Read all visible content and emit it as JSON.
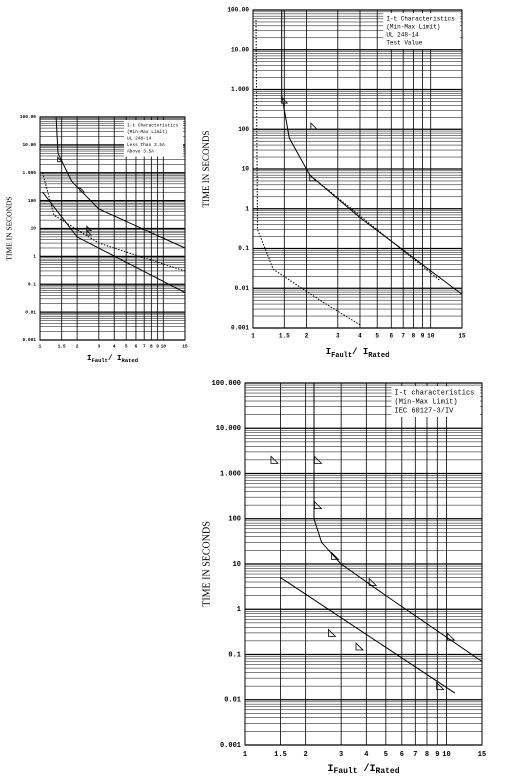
{
  "chart_data": [
    {
      "type": "line",
      "log_x": true,
      "log_y": true,
      "grid": true,
      "minor_grid": true,
      "legend": "upper right",
      "y_label": "TIME IN SECONDS",
      "x_label": [
        "I",
        "Fault",
        "/ I",
        "Rated"
      ],
      "legend_text": [
        "I-t Characteristics",
        "(Min-Max Limit)",
        "UL 248-14",
        "Less Than 3.5A",
        "Above 3.5A"
      ],
      "xlim": [
        1,
        15
      ],
      "xticks": [
        1,
        1.5,
        2,
        3,
        4,
        5,
        6,
        7,
        8,
        9,
        10,
        15
      ],
      "ylim": [
        0.001,
        100000
      ],
      "yticks": [
        0.001,
        0.01,
        0.1,
        1,
        10,
        100,
        {
          "value": 1000,
          "label": "1.000"
        },
        {
          "value": 10000,
          "label": "10.00"
        },
        {
          "value": 100000,
          "label": "100.00"
        }
      ],
      "series": [
        {
          "color": "#000000",
          "dash": false,
          "x": [
            1.35,
            1.4,
            1.8,
            3,
            15
          ],
          "values": [
            100000,
            5000,
            500,
            50,
            2
          ]
        },
        {
          "color": "#000000",
          "dash": true,
          "x": [
            1.05,
            1.3,
            3,
            15
          ],
          "values": [
            1000,
            30,
            3,
            0.3
          ]
        },
        {
          "color": "#000000",
          "dash": false,
          "x": [
            1.05,
            2,
            15
          ],
          "values": [
            200,
            5,
            0.05
          ]
        }
      ],
      "markers": {
        "color": "#000000",
        "x": [
          1.45,
          2.2,
          2.5,
          2.5
        ],
        "values": [
          3000,
          240,
          10,
          7
        ]
      }
    },
    {
      "type": "line",
      "log_x": true,
      "log_y": true,
      "grid": true,
      "minor_grid": true,
      "legend": "upper right",
      "y_label": "TIME IN SECONDS",
      "x_label": [
        "I",
        "Fault",
        "/ I",
        "Rated"
      ],
      "legend_text": [
        "I-t Characteristics",
        "(Min-Max Limit)",
        "UL 248-14",
        "Test Value"
      ],
      "xlim": [
        1,
        15
      ],
      "xticks": [
        1,
        1.5,
        2,
        3,
        4,
        5,
        6,
        7,
        8,
        9,
        10,
        15
      ],
      "ylim": [
        0.001,
        100000
      ],
      "yticks": [
        0.001,
        0.01,
        0.1,
        1,
        10,
        100,
        {
          "value": 1000,
          "label": "1.000"
        },
        {
          "value": 10000,
          "label": "10.00"
        },
        {
          "value": 100000,
          "label": "100.00"
        }
      ],
      "series": [
        {
          "color": "#000000",
          "dash": false,
          "x": [
            1.45,
            1.45,
            1.6,
            2.09,
            4,
            15
          ],
          "values": [
            100000,
            725,
            60,
            7,
            0.6,
            0.007
          ]
        },
        {
          "color": "#000000",
          "dash": true,
          "x": [
            1.04,
            1.06,
            1.3,
            2.38,
            4
          ],
          "values": [
            56000,
            0.3,
            0.03,
            0.005,
            0.0012
          ]
        },
        {
          "color": "#000000",
          "dash": true,
          "x": [
            2.09,
            11.2
          ],
          "values": [
            7,
            0.016
          ]
        }
      ],
      "markers": {
        "color": "#000000",
        "x": [
          1.5,
          2.2,
          2.17
        ],
        "values": [
          540,
          120,
          6
        ]
      }
    },
    {
      "type": "line",
      "log_x": true,
      "log_y": true,
      "grid": true,
      "minor_grid": true,
      "legend": "upper right",
      "y_label": "TIME IN SECONDS",
      "x_label": [
        "I",
        "Fault",
        " /I",
        "Rated"
      ],
      "legend_text": [
        "I-t characteristics",
        "(Min-Max Limit)",
        "IEC 60127-3/IV"
      ],
      "xlim": [
        1,
        15
      ],
      "xticks": [
        1,
        1.5,
        2,
        3,
        4,
        5,
        6,
        7,
        8,
        9,
        10,
        15
      ],
      "ylim": [
        0.001,
        100000
      ],
      "yticks": [
        0.001,
        0.01,
        0.1,
        1,
        10,
        100,
        {
          "value": 1000,
          "label": "1.000"
        },
        {
          "value": 10000,
          "label": "10.000"
        },
        {
          "value": 100000,
          "label": "100.000"
        }
      ],
      "series": [
        {
          "color": "#000000",
          "dash": false,
          "x": [
            2.2,
            2.2,
            2.4,
            3,
            5,
            15
          ],
          "values": [
            100000,
            100,
            30,
            10,
            2,
            0.07
          ]
        },
        {
          "color": "#000000",
          "dash": false,
          "x": [
            1.5,
            11
          ],
          "values": [
            5,
            0.014
          ]
        }
      ],
      "markers": {
        "color": "#000000",
        "x": [
          1.4,
          2.3,
          2.3,
          2.8,
          4.3,
          2.7,
          3.7,
          10.5,
          9.3
        ],
        "values": [
          2000,
          2000,
          200,
          15,
          4,
          0.3,
          0.15,
          0.25,
          0.02
        ]
      }
    }
  ]
}
